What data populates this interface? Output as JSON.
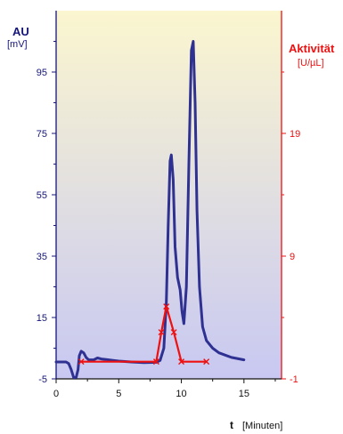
{
  "labels": {
    "left_axis_title": "AU",
    "left_axis_unit": "[mV]",
    "right_axis_title": "Aktivität",
    "right_axis_unit": "[U/µL]",
    "x_axis_title": "t",
    "x_axis_unit": "[Minuten]"
  },
  "colors": {
    "absorbance_line": "#2e3192",
    "activity_line": "#ee1111",
    "left_axis": "#15157a",
    "right_axis": "#ee1111",
    "background_top": "#fbf6cf",
    "background_bottom": "#c8c8f2"
  },
  "chart_data": {
    "type": "line",
    "xlim": [
      0,
      18
    ],
    "xticks": [
      0,
      5,
      10,
      15
    ],
    "y_left_lim": [
      -5,
      115
    ],
    "y_left_ticks": [
      -5,
      15,
      35,
      55,
      75,
      95
    ],
    "y_right_lim": [
      -1,
      29
    ],
    "y_right_ticks": [
      -1,
      9,
      19
    ],
    "grid": false,
    "series": [
      {
        "axis": "left",
        "points": [
          [
            0,
            0.5
          ],
          [
            0.8,
            0.5
          ],
          [
            1.0,
            0
          ],
          [
            1.2,
            -2
          ],
          [
            1.4,
            -4.6
          ],
          [
            1.6,
            -4.5
          ],
          [
            1.75,
            -2
          ],
          [
            1.85,
            2.5
          ],
          [
            2.0,
            4
          ],
          [
            2.2,
            3.5
          ],
          [
            2.4,
            2
          ],
          [
            2.6,
            1.2
          ],
          [
            3.0,
            1.2
          ],
          [
            3.3,
            1.8
          ],
          [
            3.6,
            1.5
          ],
          [
            4.0,
            1.3
          ],
          [
            5.0,
            0.8
          ],
          [
            6.0,
            0.5
          ],
          [
            7.0,
            0.3
          ],
          [
            8.0,
            0.4
          ],
          [
            8.3,
            1.0
          ],
          [
            8.6,
            5
          ],
          [
            8.8,
            20
          ],
          [
            8.95,
            45
          ],
          [
            9.1,
            66
          ],
          [
            9.2,
            68
          ],
          [
            9.35,
            60
          ],
          [
            9.5,
            38
          ],
          [
            9.7,
            28
          ],
          [
            9.9,
            24
          ],
          [
            10.05,
            17
          ],
          [
            10.2,
            13
          ],
          [
            10.4,
            25
          ],
          [
            10.6,
            65
          ],
          [
            10.8,
            102
          ],
          [
            10.95,
            105
          ],
          [
            11.1,
            85
          ],
          [
            11.25,
            50
          ],
          [
            11.45,
            25
          ],
          [
            11.7,
            12
          ],
          [
            12.0,
            7.5
          ],
          [
            12.5,
            5
          ],
          [
            13.0,
            3.5
          ],
          [
            14.0,
            2
          ],
          [
            15.0,
            1.2
          ]
        ]
      },
      {
        "axis": "right",
        "points": [
          [
            2,
            0.4
          ],
          [
            8,
            0.4
          ],
          [
            8.4,
            2.8
          ],
          [
            8.8,
            4.9
          ],
          [
            9.4,
            2.8
          ],
          [
            10,
            0.4
          ],
          [
            12,
            0.4
          ]
        ]
      }
    ]
  }
}
